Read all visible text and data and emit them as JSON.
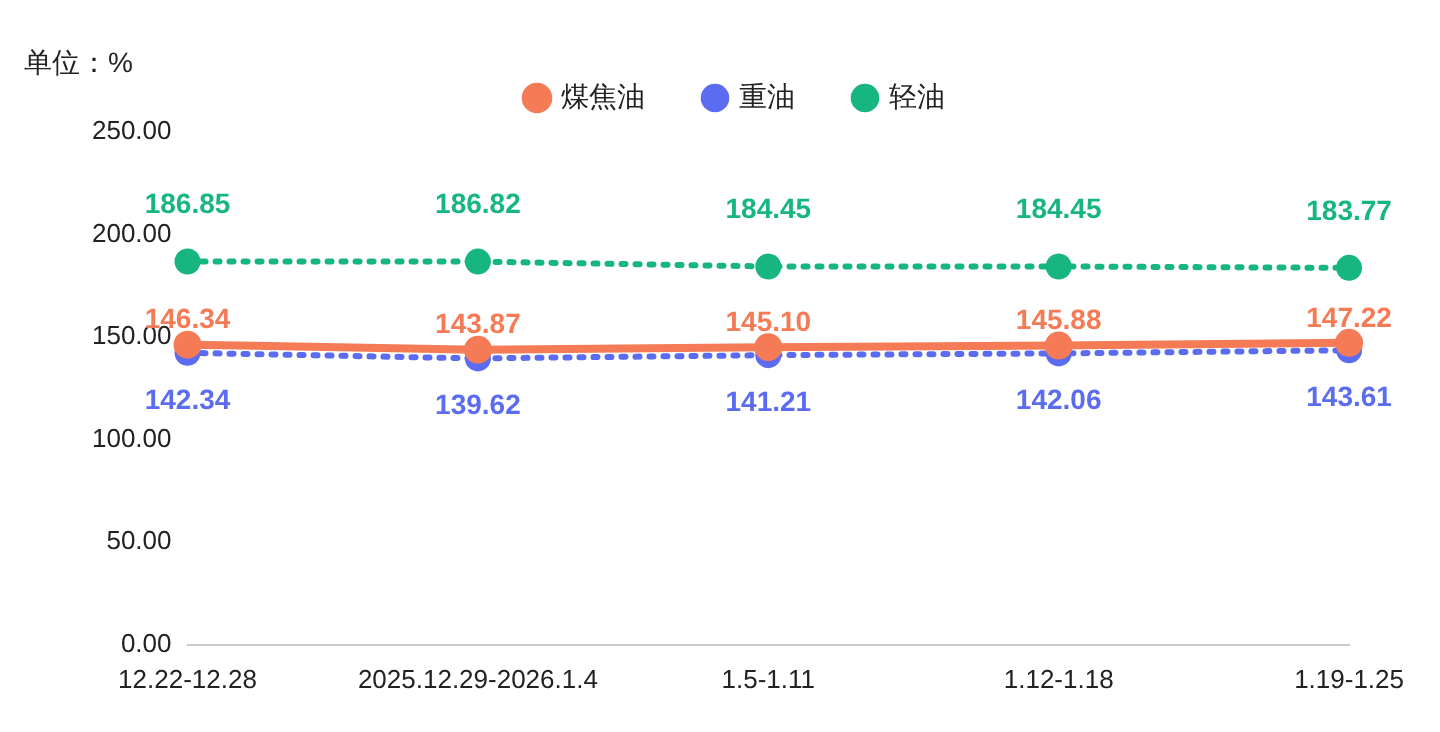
{
  "chart_data": {
    "type": "line",
    "ylabel": "单位：%",
    "categories": [
      "12.22-12.28",
      "2025.12.29-2026.1.4",
      "1.5-1.11",
      "1.12-1.18",
      "1.19-1.25"
    ],
    "series": [
      {
        "name": "煤焦油",
        "color": "#f47b55",
        "line_style": "solid",
        "values": [
          146.34,
          143.87,
          145.1,
          145.88,
          147.22
        ],
        "value_labels": [
          "146.34",
          "143.87",
          "145.10",
          "145.88",
          "147.22"
        ]
      },
      {
        "name": "重油",
        "color": "#5b6cf0",
        "line_style": "dotted",
        "values": [
          142.34,
          139.62,
          141.21,
          142.06,
          143.61
        ],
        "value_labels": [
          "142.34",
          "139.62",
          "141.21",
          "142.06",
          "143.61"
        ]
      },
      {
        "name": "轻油",
        "color": "#17b57f",
        "line_style": "dotted",
        "values": [
          186.85,
          186.82,
          184.45,
          184.45,
          183.77
        ],
        "value_labels": [
          "186.85",
          "186.82",
          "184.45",
          "184.45",
          "183.77"
        ]
      }
    ],
    "ylim": [
      0,
      250
    ],
    "yticks": [
      {
        "value": 0,
        "label": "0.00"
      },
      {
        "value": 50,
        "label": "50.00"
      },
      {
        "value": 100,
        "label": "100.00"
      },
      {
        "value": 150,
        "label": "150.00"
      },
      {
        "value": 200,
        "label": "200.00"
      },
      {
        "value": 250,
        "label": "250.00"
      }
    ],
    "grid": false,
    "legend": "top",
    "marker": "circle"
  }
}
